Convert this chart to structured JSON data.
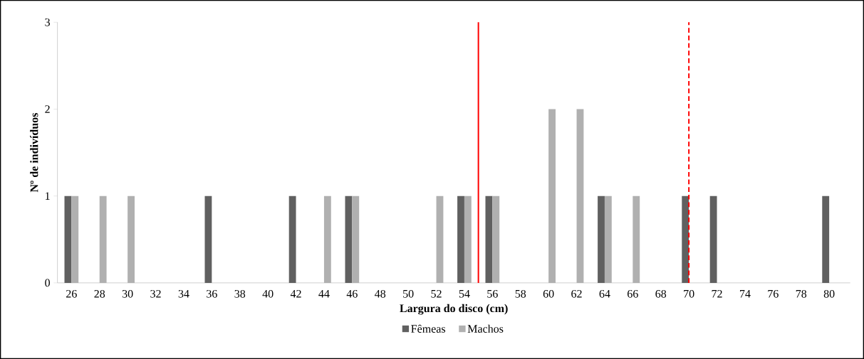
{
  "chart_data": {
    "type": "bar",
    "xlabel": "Largura do disco (cm)",
    "ylabel": "Nº de indivíduos",
    "x": [
      26,
      28,
      30,
      32,
      34,
      36,
      38,
      40,
      42,
      44,
      46,
      48,
      50,
      52,
      54,
      56,
      58,
      60,
      62,
      64,
      66,
      68,
      70,
      72,
      74,
      76,
      78,
      80
    ],
    "xlim": [
      25,
      81.5
    ],
    "xticks": [
      26,
      28,
      30,
      32,
      34,
      36,
      38,
      40,
      42,
      44,
      46,
      48,
      50,
      52,
      54,
      56,
      58,
      60,
      62,
      64,
      66,
      68,
      70,
      72,
      74,
      76,
      78,
      80
    ],
    "ylim": [
      0,
      3
    ],
    "yticks": [
      0,
      1,
      2,
      3
    ],
    "series": [
      {
        "name": "Fêmeas",
        "color": "#606060",
        "values": [
          1,
          0,
          0,
          0,
          0,
          1,
          0,
          0,
          1,
          0,
          1,
          0,
          0,
          0,
          1,
          1,
          0,
          0,
          0,
          1,
          0,
          0,
          1,
          1,
          0,
          0,
          0,
          1
        ]
      },
      {
        "name": "Machos",
        "color": "#b0b0b0",
        "values": [
          1,
          1,
          1,
          0,
          0,
          0,
          0,
          0,
          0,
          1,
          1,
          0,
          0,
          1,
          1,
          1,
          0,
          2,
          2,
          1,
          1,
          0,
          0,
          0,
          0,
          0,
          0,
          0
        ]
      }
    ],
    "ref_lines": [
      {
        "axis": "x",
        "value": 55,
        "color": "#ff0000",
        "line_style": "solid"
      },
      {
        "axis": "x",
        "value": 70,
        "color": "#ff0000",
        "line_style": "dashed"
      }
    ],
    "legend": "bottom",
    "grid": false
  }
}
